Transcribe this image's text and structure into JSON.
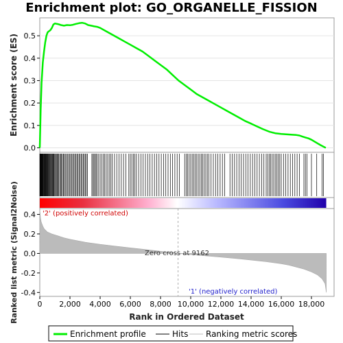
{
  "chart_data": {
    "type": "line",
    "title": "Enrichment plot: GO_ORGANELLE_FISSION",
    "top_panel": {
      "ylabel": "Enrichment score (ES)",
      "ylim": [
        -0.02,
        0.58
      ],
      "yticks": [
        0.0,
        0.1,
        0.2,
        0.3,
        0.4,
        0.5
      ],
      "ytick_labels": [
        "0.0",
        "0.1",
        "0.2",
        "0.3",
        "0.4",
        "0.5"
      ],
      "series": [
        {
          "name": "Enrichment profile",
          "color": "#00ee00",
          "x": [
            0,
            60,
            120,
            200,
            280,
            360,
            440,
            520,
            600,
            700,
            800,
            900,
            1000,
            1200,
            1400,
            1600,
            1800,
            2000,
            2200,
            2400,
            2600,
            2800,
            3000,
            3200,
            3400,
            3600,
            3800,
            4000,
            4400,
            4800,
            5200,
            5600,
            6000,
            6400,
            6800,
            7200,
            7600,
            8000,
            8400,
            8800,
            9200,
            9600,
            10000,
            10400,
            10800,
            11200,
            11600,
            12000,
            12400,
            12800,
            13200,
            13600,
            14000,
            14400,
            14800,
            15200,
            15600,
            16000,
            16400,
            16800,
            17000,
            17200,
            17400,
            17600,
            17800,
            18000,
            18200,
            18400,
            18600,
            18800,
            18950
          ],
          "values": [
            0.0,
            0.17,
            0.29,
            0.38,
            0.43,
            0.47,
            0.5,
            0.515,
            0.52,
            0.525,
            0.535,
            0.55,
            0.555,
            0.552,
            0.548,
            0.545,
            0.548,
            0.547,
            0.549,
            0.553,
            0.556,
            0.558,
            0.555,
            0.548,
            0.545,
            0.542,
            0.54,
            0.535,
            0.52,
            0.505,
            0.49,
            0.475,
            0.46,
            0.445,
            0.43,
            0.41,
            0.39,
            0.37,
            0.35,
            0.325,
            0.3,
            0.28,
            0.26,
            0.24,
            0.225,
            0.21,
            0.195,
            0.18,
            0.165,
            0.15,
            0.135,
            0.12,
            0.108,
            0.095,
            0.083,
            0.072,
            0.065,
            0.062,
            0.06,
            0.058,
            0.057,
            0.055,
            0.05,
            0.046,
            0.042,
            0.036,
            0.028,
            0.02,
            0.012,
            0.005,
            0.0
          ]
        }
      ]
    },
    "hits": {
      "name": "Hits",
      "color": "#000000",
      "positions": [
        5,
        20,
        35,
        50,
        70,
        90,
        110,
        130,
        150,
        175,
        200,
        225,
        250,
        280,
        310,
        340,
        370,
        400,
        430,
        460,
        490,
        520,
        550,
        590,
        630,
        670,
        710,
        750,
        790,
        830,
        870,
        910,
        950,
        1000,
        1050,
        1100,
        1150,
        1200,
        1260,
        1320,
        1380,
        1440,
        1500,
        1560,
        1620,
        1690,
        1760,
        1830,
        1900,
        1970,
        2040,
        2110,
        2180,
        2250,
        2320,
        2390,
        2460,
        2530,
        2600,
        2670,
        2740,
        2810,
        2880,
        2950,
        3020,
        3090,
        3160,
        3450,
        3520,
        3590,
        3660,
        3730,
        3800,
        3900,
        4000,
        4100,
        4200,
        4300,
        4400,
        4500,
        4600,
        4700,
        4800,
        4950,
        5100,
        5250,
        5400,
        5550,
        5700,
        5900,
        6000,
        6100,
        6200,
        6300,
        6400,
        6550,
        6700,
        6850,
        7000,
        7150,
        7300,
        7450,
        7600,
        7750,
        7900,
        8050,
        8200,
        8350,
        8500,
        8650,
        8800,
        8950,
        9100,
        9250,
        9600,
        9700,
        9800,
        9900,
        10000,
        10100,
        10200,
        10300,
        10400,
        10500,
        10600,
        10700,
        10800,
        10900,
        11000,
        11100,
        11200,
        11350,
        11500,
        11650,
        11800,
        11950,
        12100,
        12250,
        12600,
        12750,
        12900,
        13050,
        13200,
        13350,
        13500,
        13650,
        13800,
        13950,
        14100,
        14250,
        14400,
        14550,
        14700,
        14850,
        15000,
        15100,
        15200,
        15300,
        15400,
        15500,
        15600,
        15700,
        15800,
        15900,
        16000,
        16150,
        16300,
        16450,
        16600,
        16750,
        16900,
        17050,
        17200,
        17500,
        17600,
        17700,
        18000,
        18350,
        18700,
        18800
      ]
    },
    "ranking_panel": {
      "ylabel": "Ranked list metric (Signal2Noise)",
      "xlabel": "Rank in Ordered Dataset",
      "xlim": [
        0,
        19500
      ],
      "ylim": [
        -0.44,
        0.46
      ],
      "xticks": [
        0,
        2000,
        4000,
        6000,
        8000,
        10000,
        12000,
        14000,
        16000,
        18000
      ],
      "xtick_labels": [
        "0",
        "2,000",
        "4,000",
        "6,000",
        "8,000",
        "10,000",
        "12,000",
        "14,000",
        "16,000",
        "18,000"
      ],
      "yticks": [
        -0.4,
        -0.2,
        0.0,
        0.2,
        0.4
      ],
      "ytick_labels": [
        "-0.4",
        "-0.2",
        "0.0",
        "0.2",
        "0.4"
      ],
      "series": [
        {
          "name": "Ranking metric scores",
          "color": "#bbbbbb",
          "x": [
            0,
            50,
            100,
            200,
            300,
            500,
            800,
            1200,
            1600,
            2000,
            3000,
            4000,
            5000,
            6000,
            7000,
            8000,
            9162,
            10000,
            11000,
            12000,
            13000,
            14000,
            15000,
            16000,
            16500,
            17000,
            17500,
            18000,
            18400,
            18700,
            18900,
            18950,
            18980
          ],
          "values": [
            0.45,
            0.36,
            0.32,
            0.28,
            0.25,
            0.22,
            0.2,
            0.18,
            0.16,
            0.145,
            0.115,
            0.093,
            0.075,
            0.057,
            0.04,
            0.022,
            0.0,
            -0.012,
            -0.025,
            -0.038,
            -0.052,
            -0.068,
            -0.085,
            -0.105,
            -0.12,
            -0.14,
            -0.16,
            -0.19,
            -0.22,
            -0.26,
            -0.31,
            -0.36,
            -0.4
          ]
        }
      ]
    },
    "annotations": {
      "zero_cross": "Zero cross at 9162",
      "zero_cross_rank": 9162,
      "positive": "'2' (positively correlated)",
      "negative": "'1' (negatively correlated)"
    },
    "colorbar": {
      "from": "#ff0000",
      "mid": "#ffffff",
      "to": "#0000cc"
    },
    "legend": {
      "placement": "bottom",
      "items": [
        {
          "label": "Enrichment profile",
          "color": "#00ee00"
        },
        {
          "label": "Hits",
          "color": "#000000"
        },
        {
          "label": "Ranking metric scores",
          "color": "#bbbbbb"
        }
      ]
    }
  }
}
